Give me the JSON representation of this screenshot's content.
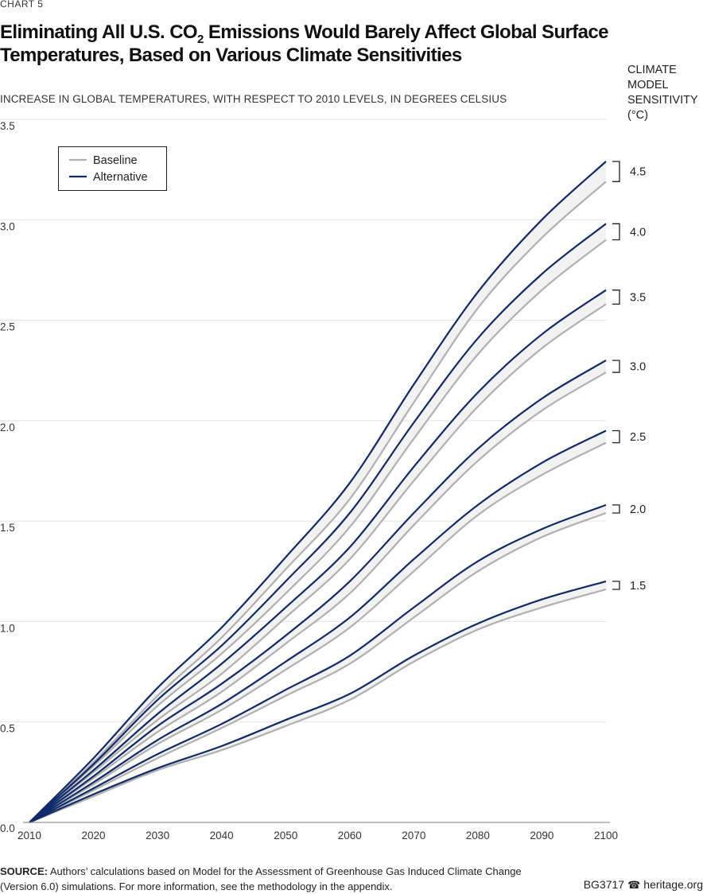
{
  "header": {
    "chart_label": "CHART 5",
    "title_part1": "Eliminating All U.S. CO",
    "title_sub": "2",
    "title_part2": " Emissions Would Barely Affect Global Surface Temperatures, Based on Various Climate Sensitivities",
    "subtitle": "INCREASE IN GLOBAL TEMPERATURES, WITH RESPECT TO 2010 LEVELS, IN DEGREES CELSIUS",
    "sensitivity_title": [
      "CLIMATE",
      "MODEL",
      "SENSITIVITY",
      "(°C)"
    ]
  },
  "footer": {
    "source_label": "SOURCE:",
    "source_text": " Authors’ calculations based on Model for the Assessment of Greenhouse Gas Induced Climate Change (Version 6.0) simulations. For more information, see the methodology in the appendix.",
    "report_id": "BG3717",
    "site": "heritage.org",
    "bell_icon": "bell-icon"
  },
  "colors": {
    "baseline": "#b0b0b0",
    "alternative": "#0f2a6b",
    "band_fill": "#f2f2f2",
    "grid": "#e2e2e2"
  },
  "chart_data": {
    "type": "line",
    "xlim": [
      2010,
      2100
    ],
    "ylim": [
      0,
      3.5
    ],
    "x_ticks": [
      2010,
      2020,
      2030,
      2040,
      2050,
      2060,
      2070,
      2080,
      2090,
      2100
    ],
    "y_ticks": [
      "0.0",
      "0.5",
      "1.0",
      "1.5",
      "2.0",
      "2.5",
      "3.0",
      "3.5"
    ],
    "legend": {
      "position": "top-left",
      "entries": [
        {
          "name": "Baseline",
          "color": "#b0b0b0"
        },
        {
          "name": "Alternative",
          "color": "#0f2a6b"
        }
      ]
    },
    "grid": true,
    "x": [
      2010,
      2020,
      2030,
      2040,
      2050,
      2060,
      2070,
      2080,
      2090,
      2100
    ],
    "pairs": [
      {
        "sensitivity": "1.5",
        "baseline": [
          0,
          0.13,
          0.26,
          0.36,
          0.48,
          0.61,
          0.8,
          0.96,
          1.07,
          1.16
        ],
        "alternative": [
          0,
          0.14,
          0.27,
          0.38,
          0.51,
          0.64,
          0.83,
          0.99,
          1.11,
          1.2
        ]
      },
      {
        "sensitivity": "2.0",
        "baseline": [
          0,
          0.16,
          0.32,
          0.47,
          0.63,
          0.79,
          1.02,
          1.25,
          1.42,
          1.54
        ],
        "alternative": [
          0,
          0.17,
          0.34,
          0.49,
          0.66,
          0.83,
          1.07,
          1.3,
          1.46,
          1.58
        ]
      },
      {
        "sensitivity": "2.5",
        "baseline": [
          0,
          0.19,
          0.39,
          0.56,
          0.76,
          0.97,
          1.25,
          1.53,
          1.73,
          1.89
        ],
        "alternative": [
          0,
          0.2,
          0.41,
          0.59,
          0.8,
          1.02,
          1.31,
          1.58,
          1.79,
          1.95
        ]
      },
      {
        "sensitivity": "3.0",
        "baseline": [
          0,
          0.22,
          0.45,
          0.65,
          0.89,
          1.14,
          1.48,
          1.8,
          2.05,
          2.24
        ],
        "alternative": [
          0,
          0.23,
          0.48,
          0.69,
          0.93,
          1.2,
          1.54,
          1.86,
          2.11,
          2.3
        ]
      },
      {
        "sensitivity": "3.5",
        "baseline": [
          0,
          0.25,
          0.51,
          0.74,
          1.02,
          1.31,
          1.7,
          2.07,
          2.36,
          2.58
        ],
        "alternative": [
          0,
          0.26,
          0.54,
          0.79,
          1.07,
          1.37,
          1.77,
          2.14,
          2.43,
          2.65
        ]
      },
      {
        "sensitivity": "4.0",
        "baseline": [
          0,
          0.28,
          0.58,
          0.84,
          1.14,
          1.47,
          1.91,
          2.33,
          2.65,
          2.9
        ],
        "alternative": [
          0,
          0.29,
          0.61,
          0.88,
          1.2,
          1.54,
          1.99,
          2.41,
          2.73,
          2.98
        ]
      },
      {
        "sensitivity": "4.5",
        "baseline": [
          0,
          0.3,
          0.63,
          0.92,
          1.26,
          1.61,
          2.09,
          2.56,
          2.91,
          3.19
        ],
        "alternative": [
          0,
          0.32,
          0.67,
          0.97,
          1.32,
          1.69,
          2.18,
          2.64,
          3.0,
          3.29
        ]
      }
    ]
  }
}
